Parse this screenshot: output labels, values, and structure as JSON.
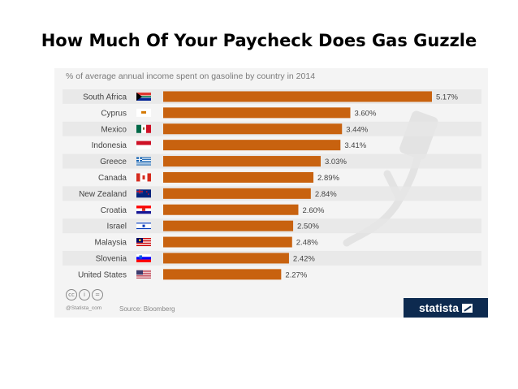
{
  "slide": {
    "title": "How Much Of Your Paycheck Does Gas Guzzle"
  },
  "chart_data": {
    "type": "bar",
    "orientation": "horizontal",
    "title": "% of average annual income spent on gasoline by country in 2014",
    "categories": [
      "South Africa",
      "Cyprus",
      "Mexico",
      "Indonesia",
      "Greece",
      "Canada",
      "New Zealand",
      "Croatia",
      "Israel",
      "Malaysia",
      "Slovenia",
      "United States"
    ],
    "values": [
      5.17,
      3.6,
      3.44,
      3.41,
      3.03,
      2.89,
      2.84,
      2.6,
      2.5,
      2.48,
      2.42,
      2.27
    ],
    "value_labels": [
      "5.17%",
      "3.60%",
      "3.44%",
      "3.41%",
      "3.03%",
      "2.89%",
      "2.84%",
      "2.60%",
      "2.50%",
      "2.48%",
      "2.42%",
      "2.27%"
    ],
    "xlim": [
      0,
      5.17
    ],
    "bar_color": "#c8620f",
    "row_band_color": "#e6e6e6",
    "grid": false,
    "legend": "none"
  },
  "flags": [
    "south-africa",
    "cyprus",
    "mexico",
    "indonesia",
    "greece",
    "canada",
    "new-zealand",
    "croatia",
    "israel",
    "malaysia",
    "slovenia",
    "united-states"
  ],
  "footer": {
    "credit_icons": [
      "cc-icon",
      "by-icon",
      "nd-icon"
    ],
    "credit_handle": "@Statista_com",
    "source": "Source: Bloomberg",
    "logo_text": "statista",
    "logo_color": "#0d2a4f"
  }
}
